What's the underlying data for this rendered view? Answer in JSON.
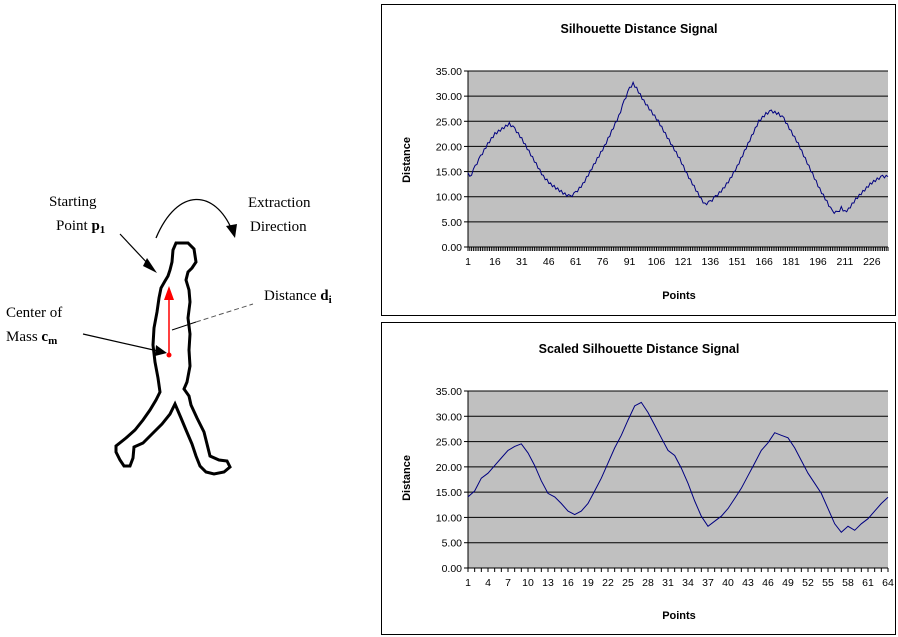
{
  "diagram": {
    "labels": {
      "starting_point": "Starting",
      "starting_point_2": "Point",
      "starting_point_var": "p",
      "starting_point_sub": "1",
      "extraction": "Extraction",
      "direction": "Direction",
      "distance": "Distance",
      "distance_var": "d",
      "distance_sub": "i",
      "center_of": "Center of",
      "mass": "Mass",
      "mass_var": "c",
      "mass_sub": "m"
    },
    "colors": {
      "centroid_line": "#ff0000",
      "outline": "#000000"
    }
  },
  "chart_data": [
    {
      "type": "line",
      "title": "Silhouette Distance Signal",
      "xlabel": "Points",
      "ylabel": "Distance",
      "ylim": [
        0,
        35
      ],
      "yticks": [
        "0.00",
        "5.00",
        "10.00",
        "15.00",
        "20.00",
        "25.00",
        "30.00",
        "35.00"
      ],
      "x_range": [
        1,
        235
      ],
      "xtick_labels": [
        "1",
        "16",
        "31",
        "46",
        "61",
        "76",
        "91",
        "106",
        "121",
        "136",
        "151",
        "166",
        "181",
        "196",
        "211",
        "226"
      ],
      "xtick_positions": [
        1,
        16,
        31,
        46,
        61,
        76,
        91,
        106,
        121,
        136,
        151,
        166,
        181,
        196,
        211,
        226
      ],
      "grid": "horizontal",
      "plot_bg": "#c0c0c0",
      "line_color": "#000080",
      "keypoints": [
        [
          1,
          14.5
        ],
        [
          2,
          13.8
        ],
        [
          5,
          16
        ],
        [
          8,
          18
        ],
        [
          12,
          20.5
        ],
        [
          16,
          22.5
        ],
        [
          20,
          23.5
        ],
        [
          24,
          24.5
        ],
        [
          27,
          23.5
        ],
        [
          31,
          21.5
        ],
        [
          35,
          19
        ],
        [
          39,
          16.5
        ],
        [
          43,
          14
        ],
        [
          47,
          12.5
        ],
        [
          51,
          11.5
        ],
        [
          55,
          10.5
        ],
        [
          58,
          10
        ],
        [
          61,
          10.8
        ],
        [
          65,
          12.5
        ],
        [
          69,
          15
        ],
        [
          73,
          17.5
        ],
        [
          77,
          20
        ],
        [
          81,
          23
        ],
        [
          85,
          26
        ],
        [
          88,
          29
        ],
        [
          91,
          31.5
        ],
        [
          93,
          32.5
        ],
        [
          95,
          31.5
        ],
        [
          99,
          29
        ],
        [
          103,
          27
        ],
        [
          107,
          25
        ],
        [
          111,
          22.5
        ],
        [
          115,
          20
        ],
        [
          119,
          17.5
        ],
        [
          123,
          14.5
        ],
        [
          127,
          12
        ],
        [
          131,
          9.5
        ],
        [
          133,
          8.5
        ],
        [
          136,
          9
        ],
        [
          139,
          10
        ],
        [
          143,
          11.5
        ],
        [
          147,
          13.5
        ],
        [
          151,
          16
        ],
        [
          155,
          19
        ],
        [
          159,
          22
        ],
        [
          163,
          25
        ],
        [
          167,
          26.5
        ],
        [
          170,
          27
        ],
        [
          174,
          26.5
        ],
        [
          177,
          25.5
        ],
        [
          181,
          23
        ],
        [
          185,
          20.5
        ],
        [
          189,
          17.5
        ],
        [
          193,
          14.5
        ],
        [
          197,
          11.5
        ],
        [
          201,
          9
        ],
        [
          204,
          7
        ],
        [
          207,
          6.8
        ],
        [
          209,
          7.8
        ],
        [
          211,
          7
        ],
        [
          213,
          7.5
        ],
        [
          217,
          9.5
        ],
        [
          221,
          11
        ],
        [
          225,
          12.5
        ],
        [
          229,
          13.5
        ],
        [
          232,
          14
        ],
        [
          235,
          14
        ]
      ]
    },
    {
      "type": "line",
      "title": "Scaled Silhouette Distance Signal",
      "xlabel": "Points",
      "ylabel": "Distance",
      "ylim": [
        0,
        35
      ],
      "yticks": [
        "0.00",
        "5.00",
        "10.00",
        "15.00",
        "20.00",
        "25.00",
        "30.00",
        "35.00"
      ],
      "x_range": [
        1,
        64
      ],
      "xtick_labels": [
        "1",
        "4",
        "7",
        "10",
        "13",
        "16",
        "19",
        "22",
        "25",
        "28",
        "31",
        "34",
        "37",
        "40",
        "43",
        "46",
        "49",
        "52",
        "55",
        "58",
        "61",
        "64"
      ],
      "xtick_positions": [
        1,
        4,
        7,
        10,
        13,
        16,
        19,
        22,
        25,
        28,
        31,
        34,
        37,
        40,
        43,
        46,
        49,
        52,
        55,
        58,
        61,
        64
      ],
      "grid": "horizontal",
      "plot_bg": "#c0c0c0",
      "line_color": "#000080",
      "keypoints": [
        [
          1,
          13.8
        ],
        [
          2,
          15
        ],
        [
          3,
          17.5
        ],
        [
          4,
          18.5
        ],
        [
          5,
          20
        ],
        [
          6,
          21.5
        ],
        [
          7,
          23
        ],
        [
          8,
          23.8
        ],
        [
          9,
          24.3
        ],
        [
          10,
          22.5
        ],
        [
          11,
          20
        ],
        [
          12,
          17
        ],
        [
          13,
          14.5
        ],
        [
          14,
          13.8
        ],
        [
          15,
          12.5
        ],
        [
          16,
          11
        ],
        [
          17,
          10.3
        ],
        [
          18,
          11
        ],
        [
          19,
          12.5
        ],
        [
          20,
          15
        ],
        [
          21,
          17.5
        ],
        [
          22,
          20.5
        ],
        [
          23,
          23.5
        ],
        [
          24,
          26
        ],
        [
          25,
          29
        ],
        [
          26,
          31.8
        ],
        [
          27,
          32.5
        ],
        [
          28,
          30.5
        ],
        [
          29,
          28
        ],
        [
          30,
          25.5
        ],
        [
          31,
          23
        ],
        [
          32,
          22
        ],
        [
          33,
          19.5
        ],
        [
          34,
          16.5
        ],
        [
          35,
          13
        ],
        [
          36,
          10
        ],
        [
          37,
          8
        ],
        [
          38,
          9
        ],
        [
          39,
          10
        ],
        [
          40,
          11.5
        ],
        [
          41,
          13.5
        ],
        [
          42,
          15.5
        ],
        [
          43,
          18
        ],
        [
          44,
          20.5
        ],
        [
          45,
          23
        ],
        [
          46,
          24.5
        ],
        [
          47,
          26.5
        ],
        [
          48,
          26
        ],
        [
          49,
          25.5
        ],
        [
          50,
          23.5
        ],
        [
          51,
          21
        ],
        [
          52,
          18.5
        ],
        [
          53,
          16.5
        ],
        [
          54,
          14.5
        ],
        [
          55,
          11.5
        ],
        [
          56,
          8.5
        ],
        [
          57,
          6.8
        ],
        [
          58,
          8
        ],
        [
          59,
          7.2
        ],
        [
          60,
          8.5
        ],
        [
          61,
          9.5
        ],
        [
          62,
          11
        ],
        [
          63,
          12.5
        ],
        [
          64,
          14
        ]
      ]
    }
  ]
}
